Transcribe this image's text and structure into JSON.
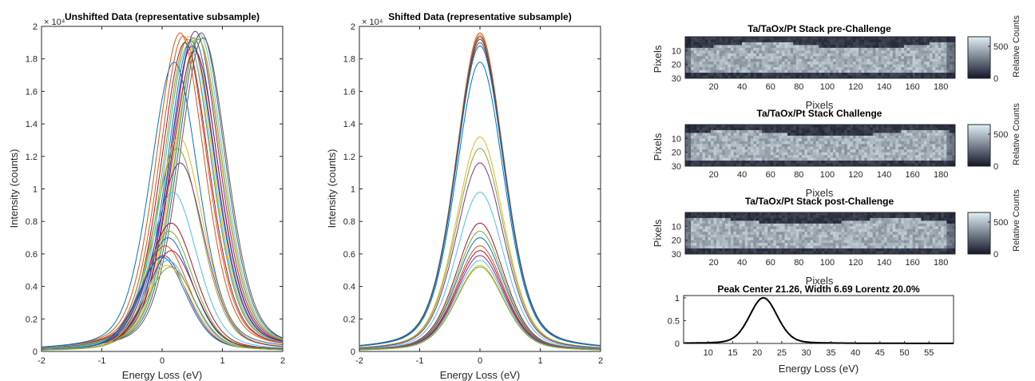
{
  "chart_data": [
    {
      "type": "line",
      "title": "Unshifted Data (representative subsample)",
      "xlabel": "Energy Loss (eV)",
      "ylabel": "Intensity (counts)",
      "xlim": [
        -2,
        2
      ],
      "ylim": [
        0,
        2
      ],
      "y_exponent": "× 10⁴",
      "xticks": [
        "-2",
        "-1",
        "0",
        "1",
        "2"
      ],
      "yticks": [
        "0",
        "0.2",
        "0.4",
        "0.6",
        "0.8",
        "1",
        "1.2",
        "1.4",
        "1.6",
        "1.8",
        "2"
      ],
      "grid": false,
      "series": [
        {
          "center": 0.52,
          "amplitude": 1.93,
          "color": "#0072bd"
        },
        {
          "center": 0.3,
          "amplitude": 1.96,
          "color": "#d95319"
        },
        {
          "center": 0.45,
          "amplitude": 1.94,
          "color": "#edb120"
        },
        {
          "center": 0.55,
          "amplitude": 1.97,
          "color": "#7e2f8e"
        },
        {
          "center": 0.42,
          "amplitude": 1.92,
          "color": "#77ac30"
        },
        {
          "center": 0.62,
          "amplitude": 1.95,
          "color": "#4dbeee"
        },
        {
          "center": 0.38,
          "amplitude": 1.9,
          "color": "#a2142f"
        },
        {
          "center": 0.65,
          "amplitude": 1.96,
          "color": "#5a5a5a"
        },
        {
          "center": 0.48,
          "amplitude": 1.91,
          "color": "#0072bd"
        },
        {
          "center": 0.35,
          "amplitude": 1.94,
          "color": "#d95319"
        },
        {
          "center": 0.58,
          "amplitude": 1.93,
          "color": "#edb120"
        },
        {
          "center": 0.5,
          "amplitude": 1.88,
          "color": "#7e2f8e"
        },
        {
          "center": 0.6,
          "amplitude": 1.92,
          "color": "#77ac30"
        },
        {
          "center": 0.44,
          "amplitude": 1.89,
          "color": "#4dbeee"
        },
        {
          "center": 0.54,
          "amplitude": 1.85,
          "color": "#a2142f"
        },
        {
          "center": 0.68,
          "amplitude": 1.93,
          "color": "#5a5a5a"
        },
        {
          "center": 0.2,
          "amplitude": 1.78,
          "color": "#0072bd"
        },
        {
          "center": 0.28,
          "amplitude": 1.32,
          "color": "#edb120"
        },
        {
          "center": 0.25,
          "amplitude": 1.25,
          "color": "#77ac30"
        },
        {
          "center": 0.3,
          "amplitude": 1.16,
          "color": "#7e2f8e"
        },
        {
          "center": 0.18,
          "amplitude": 0.98,
          "color": "#4dbeee"
        },
        {
          "center": 0.15,
          "amplitude": 0.79,
          "color": "#a2142f"
        },
        {
          "center": 0.12,
          "amplitude": 0.74,
          "color": "#77ac30"
        },
        {
          "center": 0.1,
          "amplitude": 0.7,
          "color": "#0072bd"
        },
        {
          "center": 0.05,
          "amplitude": 0.65,
          "color": "#d95319"
        },
        {
          "center": 0.15,
          "amplitude": 0.62,
          "color": "#a2142f"
        },
        {
          "center": 0.02,
          "amplitude": 0.59,
          "color": "#7e2f8e"
        },
        {
          "center": 0.0,
          "amplitude": 0.58,
          "color": "#0072bd"
        },
        {
          "center": 0.1,
          "amplitude": 0.56,
          "color": "#4dbeee"
        },
        {
          "center": 0.08,
          "amplitude": 0.53,
          "color": "#edb120"
        },
        {
          "center": 0.14,
          "amplitude": 0.52,
          "color": "#77ac30"
        }
      ]
    },
    {
      "type": "line",
      "title": "Shifted Data (representative subsample)",
      "xlabel": "Energy Loss (eV)",
      "ylabel": "Intensity (counts)",
      "xlim": [
        -2,
        2
      ],
      "ylim": [
        0,
        2
      ],
      "y_exponent": "× 10⁴",
      "xticks": [
        "-2",
        "-1",
        "0",
        "1",
        "2"
      ],
      "yticks": [
        "0",
        "0.2",
        "0.4",
        "0.6",
        "0.8",
        "1",
        "1.2",
        "1.4",
        "1.6",
        "1.8",
        "2"
      ],
      "grid": false,
      "series": [
        {
          "center": 0.0,
          "amplitude": 1.96,
          "color": "#d95319"
        },
        {
          "center": 0.0,
          "amplitude": 1.95,
          "color": "#edb120"
        },
        {
          "center": 0.0,
          "amplitude": 1.94,
          "color": "#7e2f8e"
        },
        {
          "center": 0.0,
          "amplitude": 1.93,
          "color": "#77ac30"
        },
        {
          "center": 0.0,
          "amplitude": 1.92,
          "color": "#a2142f"
        },
        {
          "center": 0.0,
          "amplitude": 1.9,
          "color": "#5a5a5a"
        },
        {
          "center": 0.0,
          "amplitude": 1.88,
          "color": "#0072bd"
        },
        {
          "center": 0.0,
          "amplitude": 1.78,
          "color": "#0072bd"
        },
        {
          "center": 0.0,
          "amplitude": 1.32,
          "color": "#edb120"
        },
        {
          "center": 0.0,
          "amplitude": 1.25,
          "color": "#77ac30"
        },
        {
          "center": 0.0,
          "amplitude": 1.16,
          "color": "#7e2f8e"
        },
        {
          "center": 0.0,
          "amplitude": 0.98,
          "color": "#4dbeee"
        },
        {
          "center": 0.0,
          "amplitude": 0.79,
          "color": "#a2142f"
        },
        {
          "center": 0.0,
          "amplitude": 0.74,
          "color": "#77ac30"
        },
        {
          "center": 0.0,
          "amplitude": 0.7,
          "color": "#0072bd"
        },
        {
          "center": 0.0,
          "amplitude": 0.65,
          "color": "#d95319"
        },
        {
          "center": 0.0,
          "amplitude": 0.62,
          "color": "#a2142f"
        },
        {
          "center": 0.0,
          "amplitude": 0.59,
          "color": "#7e2f8e"
        },
        {
          "center": 0.0,
          "amplitude": 0.56,
          "color": "#4dbeee"
        },
        {
          "center": 0.0,
          "amplitude": 0.53,
          "color": "#edb120"
        },
        {
          "center": 0.0,
          "amplitude": 0.52,
          "color": "#77ac30"
        }
      ]
    },
    {
      "type": "heatmap",
      "title": "Ta/TaOx/Pt Stack pre-Challenge",
      "xlabel": "Pixels",
      "ylabel": "Pixels",
      "xlim": [
        0,
        190
      ],
      "ylim": [
        0,
        30
      ],
      "xticks": [
        "20",
        "40",
        "60",
        "80",
        "100",
        "120",
        "140",
        "160",
        "180"
      ],
      "yticks": [
        "10",
        "20",
        "30"
      ],
      "colorbar": {
        "label": "Relative Counts",
        "ticks": [
          "500",
          "0"
        ],
        "range": [
          0,
          650
        ]
      }
    },
    {
      "type": "heatmap",
      "title": "Ta/TaOx/Pt Stack Challenge",
      "xlabel": "Pixels",
      "ylabel": "Pixels",
      "xlim": [
        0,
        190
      ],
      "ylim": [
        0,
        30
      ],
      "xticks": [
        "20",
        "40",
        "60",
        "80",
        "100",
        "120",
        "140",
        "160",
        "180"
      ],
      "yticks": [
        "10",
        "20",
        "30"
      ],
      "colorbar": {
        "label": "Relative Counts",
        "ticks": [
          "500",
          "0"
        ],
        "range": [
          0,
          650
        ]
      }
    },
    {
      "type": "heatmap",
      "title": "Ta/TaOx/Pt Stack post-Challenge",
      "xlabel": "Pixels",
      "ylabel": "Pixels",
      "xlim": [
        0,
        190
      ],
      "ylim": [
        0,
        30
      ],
      "xticks": [
        "20",
        "40",
        "60",
        "80",
        "100",
        "120",
        "140",
        "160",
        "180"
      ],
      "yticks": [
        "10",
        "20",
        "30"
      ],
      "colorbar": {
        "label": "Relative Counts",
        "ticks": [
          "500",
          "0"
        ],
        "range": [
          0,
          650
        ]
      }
    },
    {
      "type": "line",
      "title": "Peak Center 21.26, Width 6.69 Lorentz 20.0%",
      "xlabel": "Energy Loss (eV)",
      "ylabel": "",
      "xlim": [
        5,
        60
      ],
      "ylim": [
        0,
        1.05
      ],
      "xticks": [
        "10",
        "15",
        "20",
        "25",
        "30",
        "35",
        "40",
        "45",
        "50",
        "55"
      ],
      "yticks": [
        "0",
        "0.5",
        "1"
      ],
      "series": [
        {
          "center": 21.26,
          "width": 6.69,
          "lorentz_fraction": 0.2,
          "amplitude": 1.0,
          "color": "#000000"
        }
      ]
    }
  ]
}
